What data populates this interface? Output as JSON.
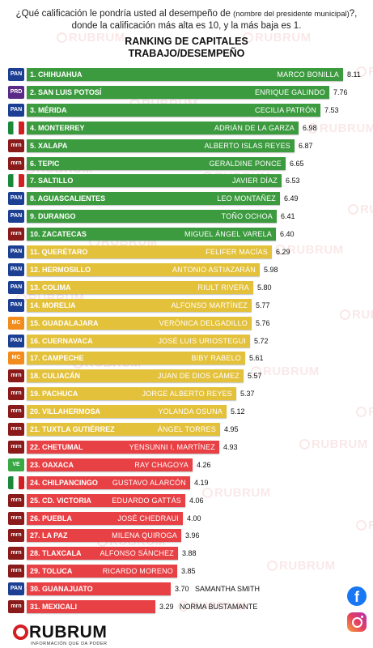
{
  "question": {
    "text_a": "¿Qué calificación le pondría usted al desempeño de",
    "text_small": "(nombre del presidente municipal)",
    "text_b": "?, donde la calificación más alta es 10, y la más baja es 1."
  },
  "watermark_text": "RUBRUM",
  "brand": {
    "name": "RUBRUM",
    "tagline": "INFORMACIÓN QUE DA PODER"
  },
  "colors": {
    "green": "#3c9b3f",
    "yellow": "#e3c13a",
    "red": "#e84145",
    "brand_red": "#d21f24"
  },
  "icons": [
    "facebook-icon",
    "instagram-icon"
  ],
  "chart_data": {
    "type": "bar",
    "orientation": "horizontal",
    "title": "RANKING DE CAPITALES",
    "subtitle": "TRABAJO/DESEMPEÑO",
    "xlim": [
      0,
      8.3
    ],
    "bands": [
      {
        "color": "green",
        "from_rank": 1,
        "to_rank": 10
      },
      {
        "color": "yellow",
        "from_rank": 11,
        "to_rank": 21
      },
      {
        "color": "red",
        "from_rank": 22,
        "to_rank": 31
      }
    ],
    "rows": [
      {
        "label": "1. CHIHUAHUA",
        "mayor": "MARCO BONILLA",
        "value": 8.11,
        "value_text": "8.11",
        "party": "PAN",
        "color": "green"
      },
      {
        "label": "2. SAN LUIS POTOSÍ",
        "mayor": "ENRIQUE GALINDO",
        "value": 7.76,
        "value_text": "7.76",
        "party": "PAN-PRD",
        "color": "green"
      },
      {
        "label": "3. MÉRIDA",
        "mayor": "CECILIA PATRÓN",
        "value": 7.53,
        "value_text": "7.53",
        "party": "PAN",
        "color": "green"
      },
      {
        "label": "4. MONTERREY",
        "mayor": "ADRIÁN DE LA GARZA",
        "value": 6.98,
        "value_text": "6.98",
        "party": "PRI",
        "color": "green"
      },
      {
        "label": "5. XALAPA",
        "mayor": "ALBERTO ISLAS REYES",
        "value": 6.87,
        "value_text": "6.87",
        "party": "MORENA",
        "color": "green"
      },
      {
        "label": "6. TEPIC",
        "mayor": "GERALDINE PONCE",
        "value": 6.65,
        "value_text": "6.65",
        "party": "MORENA",
        "color": "green"
      },
      {
        "label": "7. SALTILLO",
        "mayor": "JAVIER DÍAZ",
        "value": 6.53,
        "value_text": "6.53",
        "party": "PRI",
        "color": "green"
      },
      {
        "label": "8. AGUASCALIENTES",
        "mayor": "LEO MONTAÑEZ",
        "value": 6.49,
        "value_text": "6.49",
        "party": "PAN",
        "color": "green"
      },
      {
        "label": "9. DURANGO",
        "mayor": "TOÑO OCHOA",
        "value": 6.41,
        "value_text": "6.41",
        "party": "PAN",
        "color": "green"
      },
      {
        "label": "10. ZACATECAS",
        "mayor": "MIGUEL ÁNGEL VARELA",
        "value": 6.4,
        "value_text": "6.40",
        "party": "MORENA",
        "color": "green"
      },
      {
        "label": "11. QUERÉTARO",
        "mayor": "FELIFER MACÍAS",
        "value": 6.29,
        "value_text": "6.29",
        "party": "PAN",
        "color": "yellow"
      },
      {
        "label": "12. HERMOSILLO",
        "mayor": "ANTONIO ASTIAZARÁN",
        "value": 5.98,
        "value_text": "5.98",
        "party": "PAN",
        "color": "yellow"
      },
      {
        "label": "13. COLIMA",
        "mayor": "RIULT RIVERA",
        "value": 5.8,
        "value_text": "5.80",
        "party": "PAN",
        "color": "yellow"
      },
      {
        "label": "14. MORELIA",
        "mayor": "ALFONSO MARTÍNEZ",
        "value": 5.77,
        "value_text": "5.77",
        "party": "PAN",
        "color": "yellow"
      },
      {
        "label": "15. GUADALAJARA",
        "mayor": "VERÓNICA DELGADILLO",
        "value": 5.76,
        "value_text": "5.76",
        "party": "MC",
        "color": "yellow"
      },
      {
        "label": "16. CUERNAVACA",
        "mayor": "JOSÉ LUIS URIOSTEGUI",
        "value": 5.72,
        "value_text": "5.72",
        "party": "PAN",
        "color": "yellow"
      },
      {
        "label": "17. CAMPECHE",
        "mayor": "BIBY RABELO",
        "value": 5.61,
        "value_text": "5.61",
        "party": "MC",
        "color": "yellow"
      },
      {
        "label": "18. CULIACÁN",
        "mayor": "JUAN DE DIOS GÁMEZ",
        "value": 5.57,
        "value_text": "5.57",
        "party": "MORENA",
        "color": "yellow"
      },
      {
        "label": "19. PACHUCA",
        "mayor": "JORGE ALBERTO REYES",
        "value": 5.37,
        "value_text": "5.37",
        "party": "MORENA",
        "color": "yellow"
      },
      {
        "label": "20. VILLAHERMOSA",
        "mayor": "YOLANDA OSUNA",
        "value": 5.12,
        "value_text": "5.12",
        "party": "MORENA",
        "color": "yellow"
      },
      {
        "label": "21. TUXTLA GUTIÉRREZ",
        "mayor": "ÁNGEL TORRES",
        "value": 4.95,
        "value_text": "4.95",
        "party": "MORENA",
        "color": "yellow"
      },
      {
        "label": "22. CHETUMAL",
        "mayor": "YENSUNNI I. MARTÍNEZ",
        "value": 4.93,
        "value_text": "4.93",
        "party": "MORENA",
        "color": "red"
      },
      {
        "label": "23. OAXACA",
        "mayor": "RAY CHAGOYA",
        "value": 4.26,
        "value_text": "4.26",
        "party": "PVEM",
        "color": "red"
      },
      {
        "label": "24. CHILPANCINGO",
        "mayor": "GUSTAVO ALARCÓN",
        "value": 4.19,
        "value_text": "4.19",
        "party": "PRI",
        "color": "red"
      },
      {
        "label": "25. CD. VICTORIA",
        "mayor": "EDUARDO GATTÁS",
        "value": 4.06,
        "value_text": "4.06",
        "party": "MORENA",
        "color": "red"
      },
      {
        "label": "26. PUEBLA",
        "mayor": "JOSÉ CHEDRAUI",
        "value": 4.0,
        "value_text": "4.00",
        "party": "MORENA",
        "color": "red"
      },
      {
        "label": "27. LA PAZ",
        "mayor": "MILENA QUIROGA",
        "value": 3.96,
        "value_text": "3.96",
        "party": "MORENA",
        "color": "red"
      },
      {
        "label": "28. TLAXCALA",
        "mayor": "ALFONSO SÁNCHEZ",
        "value": 3.88,
        "value_text": "3.88",
        "party": "MORENA",
        "color": "red"
      },
      {
        "label": "29. TOLUCA",
        "mayor": "RICARDO MORENO",
        "value": 3.85,
        "value_text": "3.85",
        "party": "MORENA",
        "color": "red"
      },
      {
        "label": "30. GUANAJUATO",
        "mayor": "SAMANTHA SMITH",
        "value": 3.7,
        "value_text": "3.70",
        "party": "PAN",
        "color": "red"
      },
      {
        "label": "31. MEXICALI",
        "mayor": "NORMA BUSTAMANTE",
        "value": 3.29,
        "value_text": "3.29",
        "party": "MORENA",
        "color": "red"
      }
    ]
  }
}
